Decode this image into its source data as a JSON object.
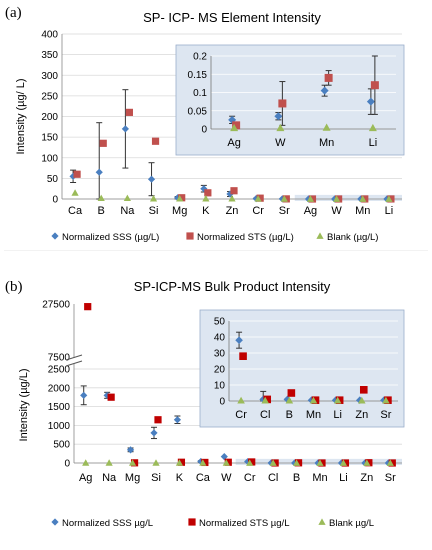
{
  "chart_data": [
    {
      "panel_label": "(a)",
      "type": "scatter",
      "title": "SP- ICP- MS Element Intensity",
      "ylabel": "Intensity  (µg/ L)",
      "categories": [
        "Ca",
        "B",
        "Na",
        "Si",
        "Mg",
        "K",
        "Zn",
        "Cr",
        "Sr",
        "Ag",
        "W",
        "Mn",
        "Li"
      ],
      "ylim": [
        0,
        400
      ],
      "yticks": [
        0,
        50,
        100,
        150,
        200,
        250,
        300,
        350,
        400
      ],
      "grid": true,
      "legend_position": "bottom",
      "series": [
        {
          "name": "Normalized SSS (µg/L)",
          "color": "#4a7fc0",
          "marker": "diamond",
          "values": [
            55,
            65,
            170,
            48,
            3,
            25,
            12,
            1,
            0.3,
            0.02,
            0.03,
            0.1,
            0.07
          ],
          "err": [
            15,
            120,
            95,
            40,
            3,
            8,
            6,
            1,
            0.3,
            0.01,
            0.02,
            0.02,
            0.04
          ]
        },
        {
          "name": "Normalized STS (µg/L)",
          "color": "#c0504d",
          "marker": "square",
          "values": [
            60,
            135,
            210,
            140,
            3,
            15,
            20,
            2,
            0.3,
            0.01,
            0.07,
            0.14,
            0.12
          ],
          "err": [
            null,
            null,
            null,
            null,
            null,
            null,
            null,
            null,
            null,
            null,
            null,
            null,
            null
          ]
        },
        {
          "name": "Blank (µg/L)",
          "color": "#9bbb59",
          "marker": "triangle",
          "values": [
            15,
            2,
            2,
            1,
            1,
            1,
            1,
            0.5,
            0.2,
            0.003,
            0.003,
            0.003,
            0.003
          ],
          "err": [
            null,
            null,
            null,
            null,
            null,
            null,
            null,
            null,
            null,
            null,
            null,
            null,
            null
          ]
        }
      ],
      "inset": {
        "categories": [
          "Ag",
          "W",
          "Mn",
          "Li"
        ],
        "ylim": [
          0,
          0.2
        ],
        "yticks": [
          0,
          0.05,
          0.1,
          0.15,
          0.2
        ],
        "series": [
          {
            "values": [
              0.025,
              0.035,
              0.105,
              0.075
            ],
            "err": [
              0.01,
              0.01,
              0.015,
              0.035
            ]
          },
          {
            "values": [
              0.01,
              0.07,
              0.14,
              0.12
            ],
            "err": [
              null,
              0.06,
              0.02,
              0.08
            ]
          },
          {
            "values": [
              0.003,
              0.003,
              0.004,
              0.003
            ],
            "err": [
              null,
              null,
              null,
              null
            ]
          }
        ]
      }
    },
    {
      "panel_label": "(b)",
      "type": "scatter",
      "title": "SP-ICP-MS Bulk Product Intensity",
      "ylabel": "Intensity (µg/L)",
      "categories": [
        "Ag",
        "Na",
        "Mg",
        "Si",
        "K",
        "Ca",
        "W",
        "Cr",
        "Cl",
        "B",
        "Mn",
        "Li",
        "Zn",
        "Sr"
      ],
      "yticks": [
        0,
        500,
        1000,
        1500,
        2000,
        2500,
        7500,
        27500
      ],
      "axis_break": [
        2600,
        7500
      ],
      "grid": true,
      "legend_position": "bottom",
      "series": [
        {
          "name": "Normalized SSS µg/L",
          "color": "#4a7fc0",
          "marker": "diamond",
          "values": [
            1800,
            1800,
            350,
            800,
            1150,
            40,
            170,
            38,
            1,
            1,
            1,
            1,
            1,
            1
          ],
          "err": [
            250,
            80,
            50,
            150,
            100,
            20,
            null,
            5,
            5,
            null,
            null,
            null,
            null,
            null
          ]
        },
        {
          "name": "Normalized STS µg/L",
          "color": "#c00000",
          "marker": "square",
          "values": [
            26500,
            1750,
            5,
            1150,
            20,
            15,
            20,
            28,
            1,
            5,
            0.5,
            0.5,
            7,
            0.5
          ],
          "err": [
            null,
            null,
            null,
            null,
            null,
            null,
            null,
            null,
            null,
            null,
            null,
            null,
            null,
            null
          ]
        },
        {
          "name": "Blank µg/L",
          "color": "#9bbb59",
          "marker": "triangle",
          "values": [
            5,
            5,
            5,
            5,
            5,
            5,
            5,
            0.3,
            0.3,
            0.3,
            0.3,
            0.3,
            0.3,
            0.3
          ],
          "err": [
            null,
            null,
            null,
            null,
            null,
            null,
            null,
            null,
            null,
            null,
            null,
            null,
            null,
            null
          ]
        }
      ],
      "inset": {
        "categories": [
          "Cr",
          "Cl",
          "B",
          "Mn",
          "Li",
          "Zn",
          "Sr"
        ],
        "ylim": [
          0,
          50
        ],
        "yticks": [
          0,
          10,
          20,
          30,
          40,
          50
        ],
        "series": [
          {
            "values": [
              38,
              1,
              1,
              0.5,
              0.5,
              0.5,
              0.5
            ],
            "err": [
              5,
              5,
              null,
              null,
              null,
              null,
              null
            ]
          },
          {
            "values": [
              28,
              1,
              5,
              0.5,
              0.5,
              7,
              0.5
            ],
            "err": [
              null,
              null,
              null,
              null,
              null,
              null,
              null
            ]
          },
          {
            "values": [
              0.3,
              0.3,
              0.3,
              0.3,
              0.3,
              0.3,
              0.3
            ],
            "err": [
              null,
              null,
              null,
              null,
              null,
              null,
              null
            ]
          }
        ]
      }
    }
  ]
}
